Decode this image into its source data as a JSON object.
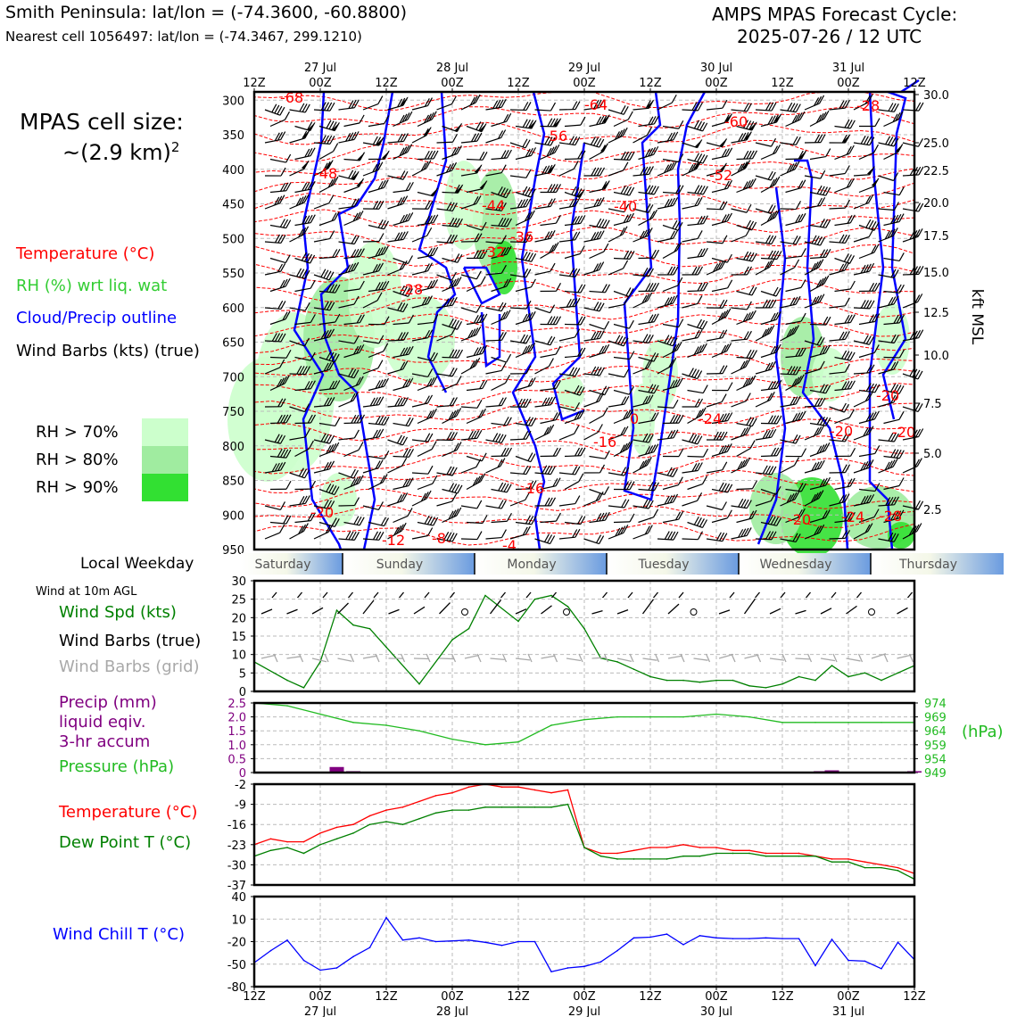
{
  "header": {
    "location_line": "Smith Peninsula: lat/lon = (-74.3600, -60.8800)",
    "nearest_cell_line": "Nearest cell 1056497: lat/lon = (-74.3467, 299.1210)",
    "forecast_title": "AMPS MPAS Forecast Cycle:",
    "forecast_cycle": "2025-07-26 / 12 UTC"
  },
  "cell_size": {
    "label": "MPAS cell size:",
    "value": "~(2.9 km)",
    "exponent": "2"
  },
  "legend": {
    "temperature": "Temperature (°C)",
    "rh": "RH (%) wrt liq. wat",
    "cloud": "Cloud/Precip outline",
    "wind_barbs": "Wind Barbs (kts) (true)",
    "rh_levels": [
      {
        "label": "RH > 70%",
        "color": "#ccffcc"
      },
      {
        "label": "RH > 80%",
        "color": "#a0eca0"
      },
      {
        "label": "RH > 90%",
        "color": "#32e032"
      }
    ]
  },
  "time_axis": {
    "hours": [
      "12Z",
      "00Z",
      "12Z",
      "00Z",
      "12Z",
      "00Z",
      "12Z",
      "00Z",
      "12Z",
      "00Z",
      "12Z"
    ],
    "dates": [
      "",
      "27 Jul",
      "",
      "28 Jul",
      "",
      "29 Jul",
      "",
      "30 Jul",
      "",
      "31 Jul",
      ""
    ]
  },
  "weekday_bar": {
    "label": "Local Weekday",
    "days": [
      "Saturday",
      "Sunday",
      "Monday",
      "Tuesday",
      "Wednesday",
      "Thursday"
    ]
  },
  "surface_panel": {
    "title": "Wind at 10m AGL",
    "labels": {
      "speed": "Wind Spd (kts)",
      "barbs_true": "Wind Barbs (true)",
      "barbs_grid": "Wind Barbs (grid)"
    }
  },
  "precip_panel": {
    "labels": [
      "Precip (mm)",
      "liquid eqiv.",
      "3-hr accum"
    ],
    "pressure_label": "Pressure (hPa)",
    "right_unit": "(hPa)"
  },
  "temp_panel": {
    "labels": {
      "temp": "Temperature (°C)",
      "dew": "Dew Point T (°C)"
    }
  },
  "chill_panel": {
    "label": "Wind Chill T (°C)"
  },
  "chart_data": [
    {
      "type": "heatmap",
      "title": "",
      "y_left_label": "",
      "y_left_ticks": [
        300,
        350,
        400,
        450,
        500,
        550,
        600,
        650,
        700,
        750,
        800,
        850,
        900,
        950
      ],
      "y_right_label": "kft MSL",
      "y_right_ticks": [
        "30.0",
        "25.0",
        "22.5",
        "20.0",
        "17.5",
        "15.0",
        "12.5",
        "10.0",
        "7.5",
        "5.0",
        "2.5"
      ],
      "x_range_hours": [
        0,
        120
      ],
      "temperature_contour_labels": [
        "-68",
        "-64",
        "-60",
        "-56",
        "-52",
        "-48",
        "-44",
        "-40",
        "-36",
        "-32",
        "-28",
        "-24",
        "-20",
        "-16",
        "-12",
        "-8",
        "-4",
        "0",
        "-20",
        "-20",
        "-24",
        "-28",
        "-28",
        "-20",
        "-16",
        "-20"
      ]
    },
    {
      "type": "line",
      "title": "",
      "x_hours": [
        0,
        6,
        9,
        12,
        15,
        18,
        21,
        24,
        30,
        36,
        39,
        42,
        48,
        51,
        54,
        57,
        60,
        63,
        66,
        69,
        72,
        75,
        78,
        81,
        84,
        87,
        90,
        93,
        96,
        99,
        102,
        105,
        108,
        111,
        114,
        117,
        120
      ],
      "series": [
        {
          "name": "Wind Spd (kts)",
          "color": "#008000",
          "values": [
            8,
            3,
            1,
            8,
            22,
            18,
            17,
            12,
            2,
            14,
            17,
            26,
            19,
            25,
            26,
            23,
            17,
            9,
            8,
            6,
            4,
            3,
            3,
            2.5,
            3,
            3,
            1.5,
            1,
            2,
            4,
            3,
            7,
            4,
            5,
            3,
            5,
            7
          ]
        }
      ],
      "ylim": [
        0,
        30
      ],
      "yticks": [
        0,
        5,
        10,
        15,
        20,
        25,
        30
      ]
    },
    {
      "type": "line",
      "title": "",
      "x_hours": [
        0,
        6,
        12,
        18,
        24,
        30,
        36,
        42,
        48,
        54,
        60,
        66,
        72,
        78,
        84,
        90,
        96,
        102,
        108,
        114,
        120
      ],
      "series": [
        {
          "name": "Pressure (hPa)",
          "color": "#22bb22",
          "values": [
            974,
            973,
            970,
            967,
            966,
            964,
            961,
            959,
            960,
            966,
            968,
            969,
            969,
            969,
            970,
            969,
            967,
            967,
            967,
            967,
            967
          ]
        }
      ],
      "bars": {
        "name": "Precip (mm)",
        "color": "#800080",
        "x_hours": [
          15,
          18,
          103,
          105,
          120
        ],
        "values": [
          0.2,
          0.05,
          0.05,
          0.08,
          0.05
        ]
      },
      "ylim_left": [
        0,
        2.5
      ],
      "yticks_left": [
        "0",
        "0.5",
        "1.0",
        "1.5",
        "2.0",
        "2.5"
      ],
      "ylim_right": [
        949,
        974
      ],
      "yticks_right": [
        "949",
        "954",
        "959",
        "964",
        "969",
        "974"
      ]
    },
    {
      "type": "line",
      "title": "",
      "x_hours": [
        0,
        3,
        6,
        9,
        12,
        15,
        18,
        21,
        24,
        27,
        30,
        33,
        36,
        39,
        42,
        45,
        48,
        51,
        54,
        57,
        60,
        63,
        66,
        69,
        72,
        75,
        78,
        81,
        84,
        87,
        90,
        93,
        96,
        99,
        102,
        105,
        108,
        111,
        114,
        117,
        120
      ],
      "series": [
        {
          "name": "Temperature (°C)",
          "color": "#ff0000",
          "values": [
            -23,
            -21,
            -22,
            -22,
            -19,
            -17,
            -16,
            -13,
            -11,
            -10,
            -8,
            -6,
            -5,
            -3,
            -2,
            -3,
            -3,
            -4,
            -5,
            -4,
            -24,
            -26,
            -26,
            -25,
            -24,
            -24,
            -23,
            -24,
            -24,
            -25,
            -25,
            -26,
            -26,
            -26,
            -27,
            -28,
            -28,
            -29,
            -30,
            -31,
            -33
          ]
        },
        {
          "name": "Dew Point T (°C)",
          "color": "#008000",
          "values": [
            -27,
            -25,
            -24,
            -26,
            -23,
            -21,
            -19,
            -16,
            -15,
            -16,
            -14,
            -12,
            -11,
            -11,
            -10,
            -10,
            -10,
            -10,
            -10,
            -9,
            -24,
            -27,
            -28,
            -28,
            -28,
            -28,
            -27,
            -27,
            -26,
            -26,
            -26,
            -27,
            -27,
            -27,
            -27,
            -29,
            -29,
            -31,
            -31,
            -32,
            -35
          ]
        }
      ],
      "ylim": [
        -37,
        -2
      ],
      "yticks": [
        -37,
        -30,
        -23,
        -16,
        -9,
        -2
      ]
    },
    {
      "type": "line",
      "title": "",
      "x_hours": [
        0,
        3,
        6,
        9,
        12,
        15,
        18,
        21,
        24,
        27,
        30,
        33,
        36,
        39,
        42,
        45,
        48,
        51,
        54,
        57,
        60,
        63,
        66,
        69,
        72,
        75,
        78,
        81,
        84,
        87,
        90,
        93,
        96,
        99,
        102,
        105,
        108,
        111,
        114,
        117,
        120
      ],
      "series": [
        {
          "name": "Wind Chill T (°C)",
          "color": "#0000ff",
          "values": [
            -48,
            -32,
            -18,
            -45,
            -58,
            -55,
            -40,
            -28,
            12,
            -18,
            -15,
            -20,
            -19,
            -18,
            -21,
            -25,
            -20,
            -20,
            -60,
            -55,
            -53,
            -47,
            -32,
            -15,
            -14,
            -10,
            -24,
            -12,
            -15,
            -16,
            -16,
            -15,
            -16,
            -16,
            -52,
            -17,
            -45,
            -46,
            -56,
            -21,
            -44
          ]
        }
      ],
      "ylim": [
        -80,
        40
      ],
      "yticks": [
        -80,
        -50,
        -20,
        10,
        40
      ]
    }
  ]
}
